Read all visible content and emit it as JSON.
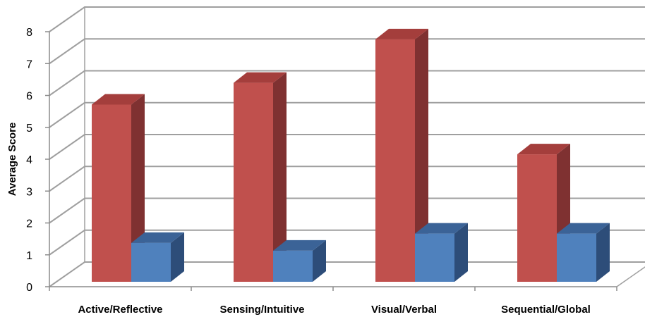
{
  "chart_data": {
    "type": "bar",
    "title": "",
    "xlabel": "",
    "ylabel": "Average Score",
    "ylim": [
      0,
      8
    ],
    "y_ticks": [
      "0",
      "1",
      "2",
      "3",
      "4",
      "5",
      "6",
      "7",
      "8"
    ],
    "categories": [
      "Active/Reflective",
      "Sensing/Intuitive",
      "Visual/Verbal",
      "Sequential/Global"
    ],
    "series": [
      {
        "values": [
          5.7,
          6.4,
          7.8,
          4.1
        ]
      },
      {
        "values": [
          1.25,
          1.0,
          1.55,
          1.55
        ]
      }
    ],
    "grid": true,
    "three_d": true,
    "legend": "none",
    "colors": {
      "series1_front": "#c0504d",
      "series1_side": "#7f3131",
      "series1_top": "#a43e3c",
      "series2_front": "#4f81bd",
      "series2_side": "#2d4d79",
      "series2_top": "#3b6397",
      "grid": "#9f9f9f",
      "axis": "#8c8c8c"
    }
  }
}
